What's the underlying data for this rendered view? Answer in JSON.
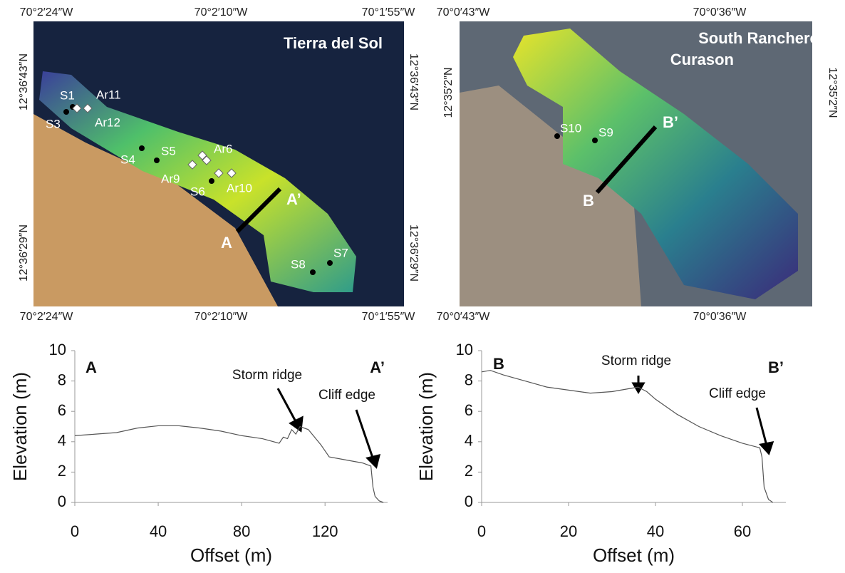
{
  "maps": [
    {
      "title_lines": [
        "Tierra del Sol"
      ],
      "top_labels": [
        "70°2′24″W",
        "70°2′10″W",
        "70°1′55″W"
      ],
      "bottom_labels": [
        "70°2′24″W",
        "70°2′10″W",
        "70°1′55″W"
      ],
      "left_labels": [
        "12°36′43″N",
        "12°36′29″N"
      ],
      "right_labels": [
        "12°36′43″N",
        "12°36′29″N"
      ],
      "sites": [
        "S1",
        "S3",
        "Ar11",
        "Ar12",
        "S4",
        "S5",
        "Ar6",
        "Ar9",
        "S6",
        "Ar10",
        "S8",
        "S7"
      ],
      "transect": [
        "A",
        "A’"
      ]
    },
    {
      "title_lines": [
        "South Ranchero",
        "Curason"
      ],
      "top_labels": [
        "70°0′43″W",
        "70°0′36″W"
      ],
      "bottom_labels": [
        "70°0′43″W",
        "70°0′36″W"
      ],
      "left_labels": [
        "12°35′2″N"
      ],
      "right_labels": [
        "12°35′2″N"
      ],
      "sites": [
        "S10",
        "S9"
      ],
      "transect": [
        "B",
        "B’"
      ]
    }
  ],
  "chart_data": [
    {
      "type": "line",
      "xlabel": "Offset (m)",
      "ylabel": "Elevation (m)",
      "annotations": [
        "A",
        "A’",
        "Storm ridge",
        "Cliff edge"
      ],
      "xlim": [
        0,
        150
      ],
      "xticks": [
        0,
        40,
        80,
        120
      ],
      "ylim": [
        0,
        10
      ],
      "yticks": [
        0,
        2,
        4,
        6,
        8,
        10
      ],
      "x": [
        0,
        10,
        20,
        30,
        40,
        50,
        60,
        70,
        80,
        90,
        98,
        100,
        102,
        104,
        106,
        108,
        112,
        118,
        122,
        130,
        138,
        142,
        143,
        144,
        146,
        148
      ],
      "series": [
        {
          "color": "#555555",
          "values": [
            4.4,
            4.5,
            4.6,
            4.9,
            5.05,
            5.05,
            4.9,
            4.7,
            4.4,
            4.2,
            3.9,
            4.3,
            4.2,
            4.8,
            4.5,
            5.0,
            4.8,
            3.8,
            3.0,
            2.8,
            2.6,
            2.4,
            1.0,
            0.4,
            0.1,
            0
          ]
        }
      ]
    },
    {
      "type": "line",
      "xlabel": "Offset (m)",
      "ylabel": "Elevation (m)",
      "annotations": [
        "B",
        "B’",
        "Storm ridge",
        "Cliff edge"
      ],
      "xlim": [
        0,
        70
      ],
      "xticks": [
        0,
        20,
        40,
        60
      ],
      "ylim": [
        0,
        10
      ],
      "yticks": [
        0,
        2,
        4,
        6,
        8,
        10
      ],
      "x": [
        0,
        2,
        5,
        10,
        15,
        20,
        25,
        30,
        34,
        36,
        38,
        40,
        45,
        50,
        55,
        60,
        64,
        64.5,
        65,
        66,
        67
      ],
      "series": [
        {
          "color": "#555555",
          "values": [
            8.6,
            8.7,
            8.4,
            8.0,
            7.6,
            7.4,
            7.2,
            7.3,
            7.5,
            7.6,
            7.3,
            6.8,
            5.8,
            5.0,
            4.4,
            3.9,
            3.6,
            3.0,
            1.0,
            0.2,
            0
          ]
        }
      ]
    }
  ]
}
